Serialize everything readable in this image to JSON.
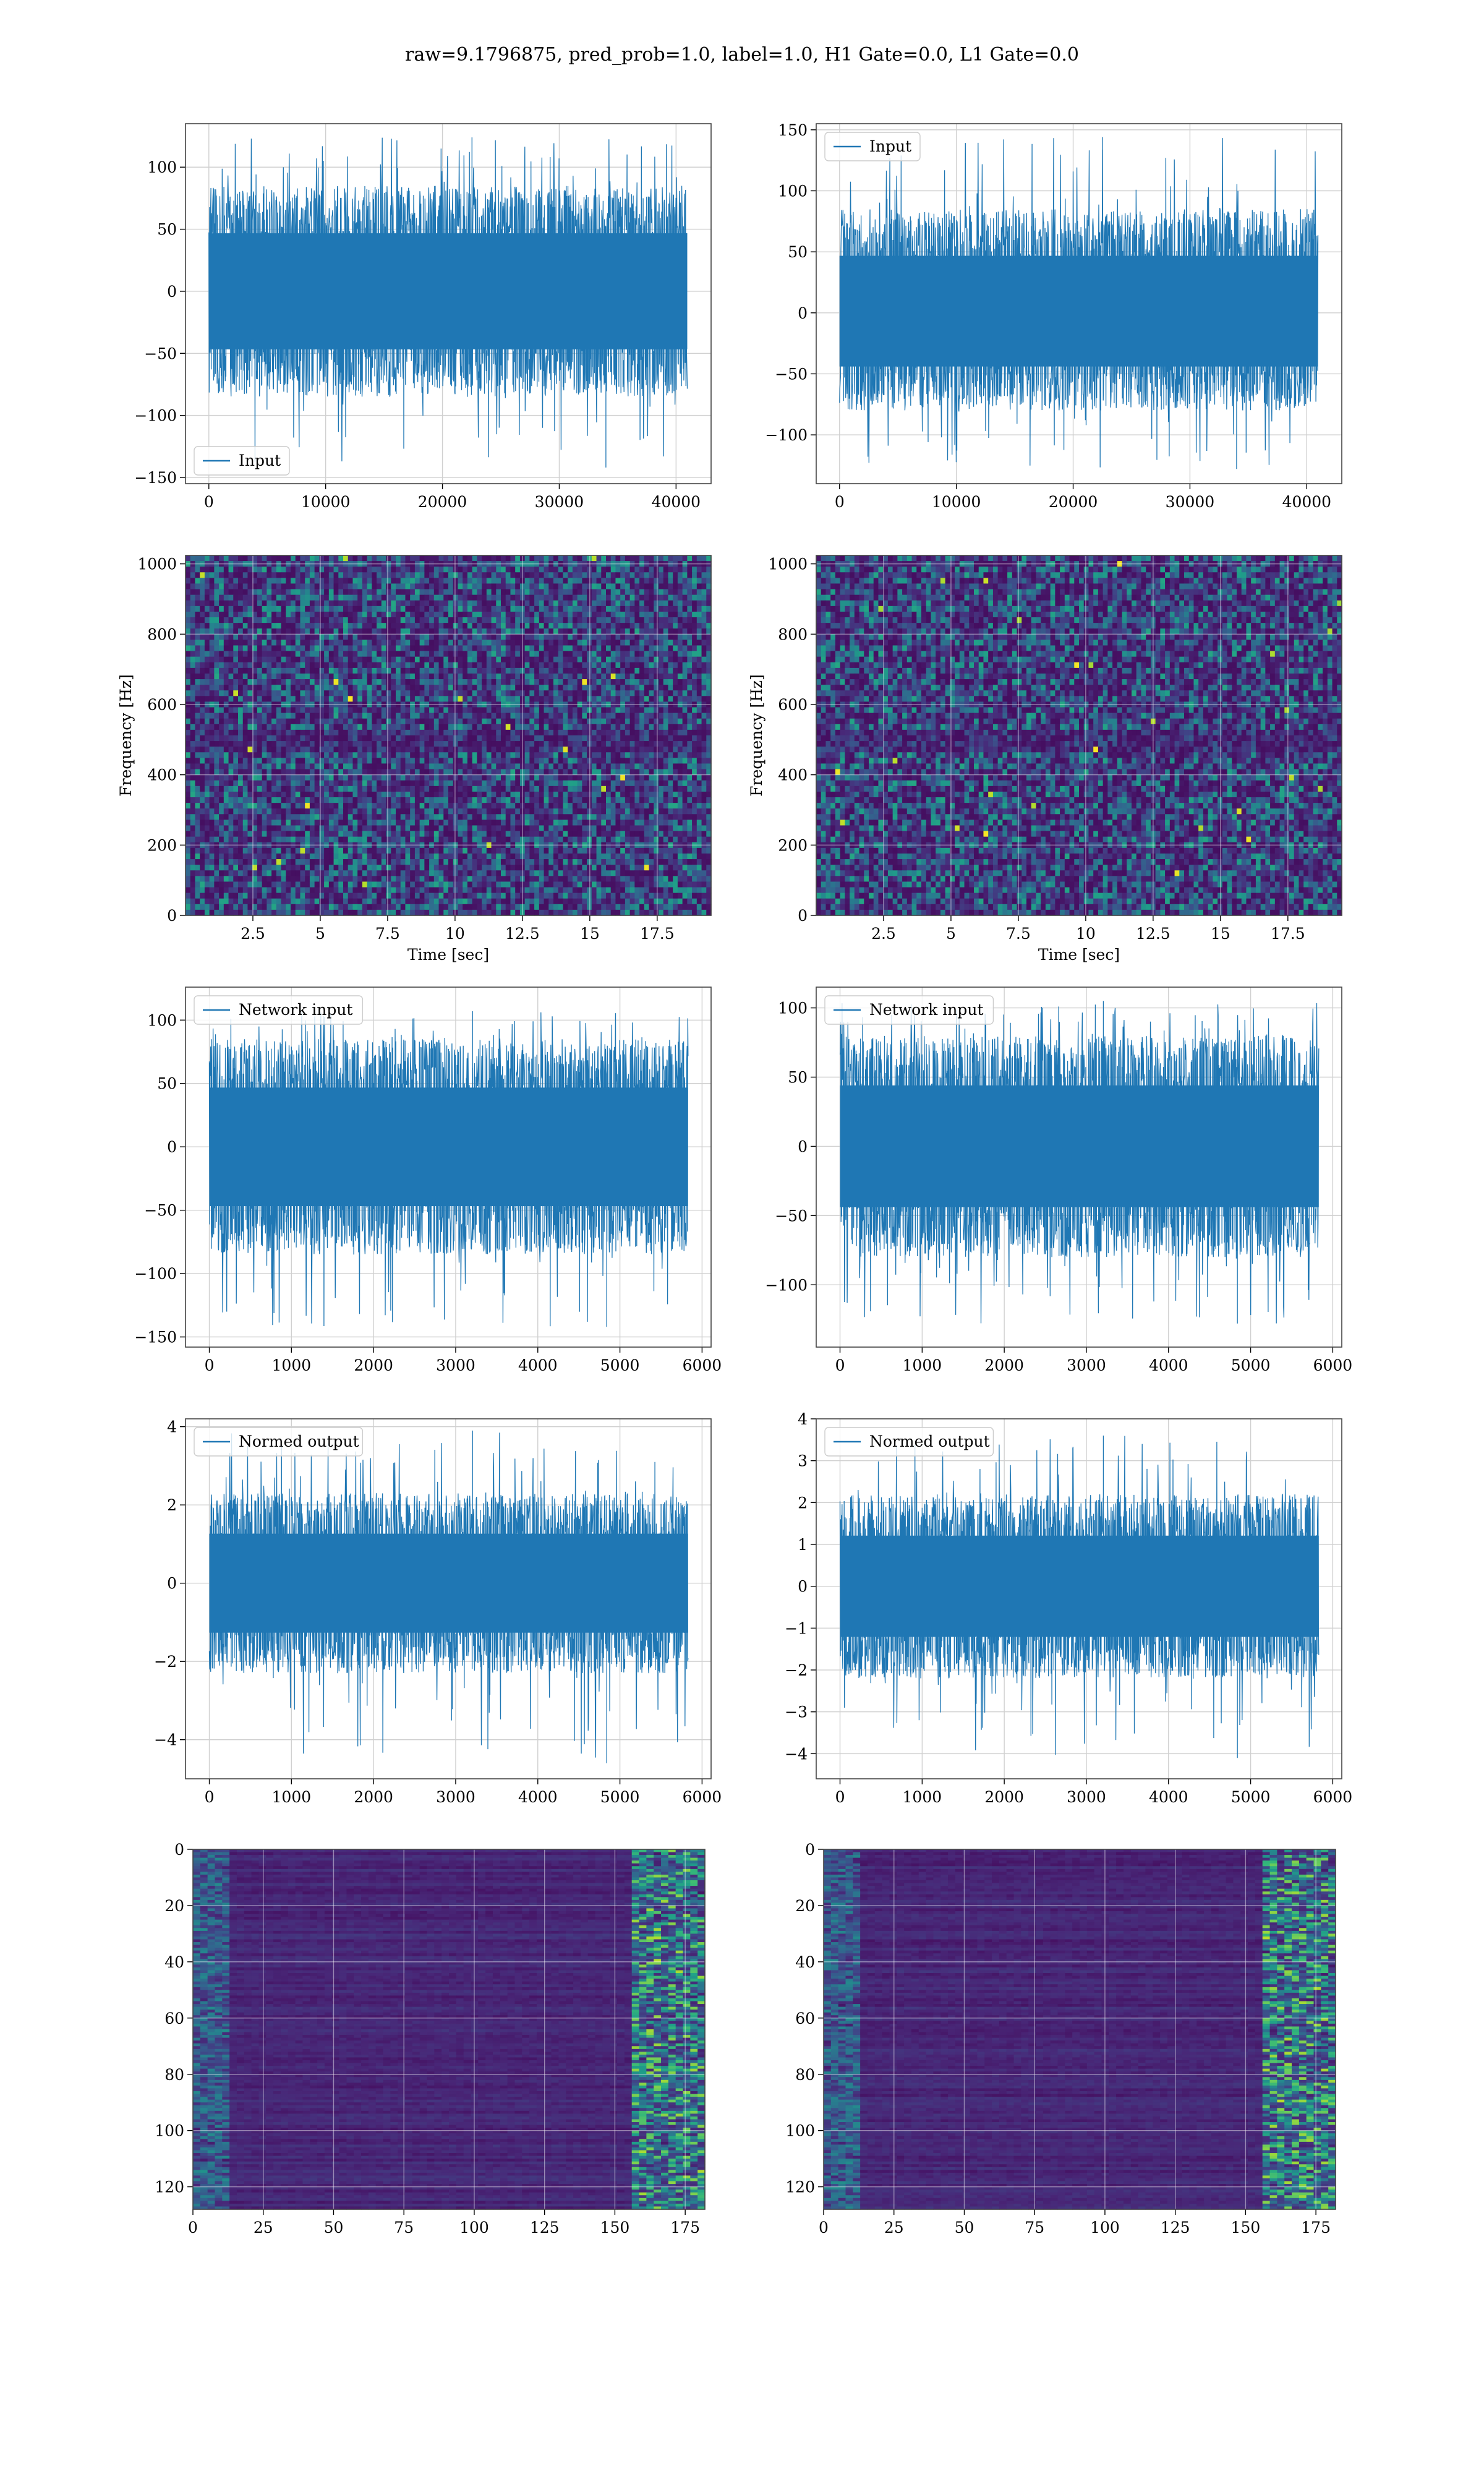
{
  "figure": {
    "suptitle": "raw=9.1796875, pred_prob=1.0, label=1.0, H1 Gate=0.0, L1 Gate=0.0"
  },
  "colors": {
    "line": "#1f77b4",
    "grid": "#d0d0d0",
    "axes_edge": "#444444",
    "viridis_dark": "#440154",
    "viridis_mid": "#31688e",
    "viridis_green": "#35b779",
    "viridis_yellow": "#fde725"
  },
  "chart_data": [
    {
      "id": "input-left",
      "type": "line",
      "series": [
        {
          "name": "Input",
          "x_range": [
            0,
            40960
          ],
          "envelope": [
            -85,
            85
          ],
          "extremes": [
            -142,
            124
          ]
        }
      ],
      "xlim": [
        -2000,
        43000
      ],
      "ylim": [
        -155,
        135
      ],
      "xticks": [
        0,
        10000,
        20000,
        30000,
        40000
      ],
      "yticks": [
        -150,
        -100,
        -50,
        0,
        50,
        100
      ],
      "legend": "lower-left",
      "grid": true,
      "xlabel": "",
      "ylabel": ""
    },
    {
      "id": "input-right",
      "type": "line",
      "series": [
        {
          "name": "Input",
          "x_range": [
            0,
            40960
          ],
          "envelope": [
            -80,
            85
          ],
          "extremes": [
            -128,
            144
          ]
        }
      ],
      "xlim": [
        -2000,
        43000
      ],
      "ylim": [
        -140,
        155
      ],
      "xticks": [
        0,
        10000,
        20000,
        30000,
        40000
      ],
      "yticks": [
        -100,
        -50,
        0,
        50,
        100,
        150
      ],
      "legend": "upper-left",
      "grid": true,
      "xlabel": "",
      "ylabel": ""
    },
    {
      "id": "spectrogram-left",
      "type": "heatmap",
      "xlim": [
        0,
        19.5
      ],
      "ylim": [
        0,
        1024
      ],
      "xticks": [
        2.5,
        5.0,
        7.5,
        10.0,
        12.5,
        15.0,
        17.5
      ],
      "yticks": [
        0,
        200,
        400,
        600,
        800,
        1000
      ],
      "xlabel": "Time [sec]",
      "ylabel": "Frequency [Hz]",
      "grid": true,
      "colormap": "viridis"
    },
    {
      "id": "spectrogram-right",
      "type": "heatmap",
      "xlim": [
        0,
        19.5
      ],
      "ylim": [
        0,
        1024
      ],
      "xticks": [
        2.5,
        5.0,
        7.5,
        10.0,
        12.5,
        15.0,
        17.5
      ],
      "yticks": [
        0,
        200,
        400,
        600,
        800,
        1000
      ],
      "xlabel": "Time [sec]",
      "ylabel": "Frequency [Hz]",
      "grid": true,
      "colormap": "viridis"
    },
    {
      "id": "network-input-left",
      "type": "line",
      "series": [
        {
          "name": "Network input",
          "x_range": [
            0,
            5830
          ],
          "envelope": [
            -85,
            85
          ],
          "extremes": [
            -142,
            107
          ]
        }
      ],
      "xlim": [
        -290,
        6110
      ],
      "ylim": [
        -158,
        126
      ],
      "xticks": [
        0,
        1000,
        2000,
        3000,
        4000,
        5000,
        6000
      ],
      "yticks": [
        -150,
        -100,
        -50,
        0,
        50,
        100
      ],
      "legend": "upper-left",
      "grid": true,
      "xlabel": "",
      "ylabel": ""
    },
    {
      "id": "network-input-right",
      "type": "line",
      "series": [
        {
          "name": "Network input",
          "x_range": [
            0,
            5830
          ],
          "envelope": [
            -80,
            80
          ],
          "extremes": [
            -128,
            105
          ]
        }
      ],
      "xlim": [
        -290,
        6110
      ],
      "ylim": [
        -145,
        115
      ],
      "xticks": [
        0,
        1000,
        2000,
        3000,
        4000,
        5000,
        6000
      ],
      "yticks": [
        -100,
        -50,
        0,
        50,
        100
      ],
      "legend": "upper-left",
      "grid": true,
      "xlabel": "",
      "ylabel": ""
    },
    {
      "id": "normed-output-left",
      "type": "line",
      "series": [
        {
          "name": "Normed output",
          "x_range": [
            0,
            5830
          ],
          "envelope": [
            -2.3,
            2.3
          ],
          "extremes": [
            -4.6,
            3.9
          ]
        }
      ],
      "xlim": [
        -290,
        6110
      ],
      "ylim": [
        -5.0,
        4.2
      ],
      "xticks": [
        0,
        1000,
        2000,
        3000,
        4000,
        5000,
        6000
      ],
      "yticks": [
        -4,
        -2,
        0,
        2,
        4
      ],
      "legend": "upper-left",
      "grid": true,
      "xlabel": "",
      "ylabel": ""
    },
    {
      "id": "normed-output-right",
      "type": "line",
      "series": [
        {
          "name": "Normed output",
          "x_range": [
            0,
            5830
          ],
          "envelope": [
            -2.2,
            2.2
          ],
          "extremes": [
            -4.1,
            3.6
          ]
        }
      ],
      "xlim": [
        -290,
        6110
      ],
      "ylim": [
        -4.6,
        4.0
      ],
      "xticks": [
        0,
        1000,
        2000,
        3000,
        4000,
        5000,
        6000
      ],
      "yticks": [
        -4,
        -3,
        -2,
        -1,
        0,
        1,
        2,
        3,
        4
      ],
      "legend": "upper-left",
      "grid": true,
      "xlabel": "",
      "ylabel": ""
    },
    {
      "id": "feature-map-left",
      "type": "heatmap",
      "xlim": [
        0,
        182
      ],
      "ylim": [
        128,
        0
      ],
      "xticks": [
        0,
        25,
        50,
        75,
        100,
        125,
        150,
        175
      ],
      "yticks": [
        0,
        20,
        40,
        60,
        80,
        100,
        120
      ],
      "grid": true,
      "colormap": "viridis",
      "xlabel": "",
      "ylabel": ""
    },
    {
      "id": "feature-map-right",
      "type": "heatmap",
      "xlim": [
        0,
        182
      ],
      "ylim": [
        128,
        0
      ],
      "xticks": [
        0,
        25,
        50,
        75,
        100,
        125,
        150,
        175
      ],
      "yticks": [
        0,
        20,
        40,
        60,
        80,
        100,
        120
      ],
      "grid": true,
      "colormap": "viridis",
      "xlabel": "",
      "ylabel": ""
    }
  ]
}
